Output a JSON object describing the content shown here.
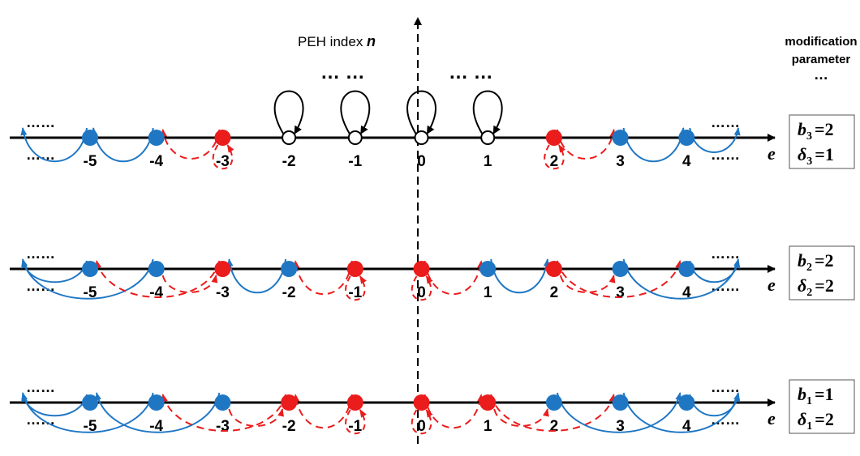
{
  "y_axis": {
    "label": "PEH index ",
    "variable": "n"
  },
  "x_axis_variable": "e",
  "modification_header": [
    "modification",
    "parameter"
  ],
  "ellipsis": "…",
  "top_ellipses": [
    "… …",
    "… …"
  ],
  "colors": {
    "blue": "#1f77c4",
    "red": "#ea1c1c",
    "white": "#ffffff",
    "black": "#000000"
  },
  "rows": [
    {
      "label_b": "b",
      "sub_b": "3",
      "value_b": "=2",
      "label_d": "δ",
      "sub_d": "3",
      "value_d": "=1",
      "ticks": [
        "-5",
        "-4",
        "-3",
        "-2",
        "-1",
        "0",
        "1",
        "2",
        "3",
        "4"
      ],
      "points": [
        {
          "x": -5,
          "type": "blue"
        },
        {
          "x": -4,
          "type": "blue"
        },
        {
          "x": -3,
          "type": "red"
        },
        {
          "x": -2,
          "type": "white"
        },
        {
          "x": -1,
          "type": "white"
        },
        {
          "x": 0,
          "type": "white"
        },
        {
          "x": 1,
          "type": "white"
        },
        {
          "x": 2,
          "type": "red"
        },
        {
          "x": 3,
          "type": "blue"
        },
        {
          "x": 4,
          "type": "blue"
        }
      ]
    },
    {
      "label_b": "b",
      "sub_b": "2",
      "value_b": "=2",
      "label_d": "δ",
      "sub_d": "2",
      "value_d": "=2",
      "ticks": [
        "-5",
        "-4",
        "-3",
        "-2",
        "-1",
        "0",
        "1",
        "2",
        "3",
        "4"
      ],
      "points": [
        {
          "x": -5,
          "type": "blue"
        },
        {
          "x": -4,
          "type": "blue"
        },
        {
          "x": -3,
          "type": "red"
        },
        {
          "x": -2,
          "type": "blue"
        },
        {
          "x": -1,
          "type": "red"
        },
        {
          "x": 0,
          "type": "red"
        },
        {
          "x": 1,
          "type": "blue"
        },
        {
          "x": 2,
          "type": "red"
        },
        {
          "x": 3,
          "type": "blue"
        },
        {
          "x": 4,
          "type": "blue"
        }
      ]
    },
    {
      "label_b": "b",
      "sub_b": "1",
      "value_b": "=1",
      "label_d": "δ",
      "sub_d": "1",
      "value_d": "=2",
      "ticks": [
        "-5",
        "-4",
        "-3",
        "-2",
        "-1",
        "0",
        "1",
        "2",
        "3",
        "4"
      ],
      "points": [
        {
          "x": -5,
          "type": "blue"
        },
        {
          "x": -4,
          "type": "blue"
        },
        {
          "x": -3,
          "type": "blue"
        },
        {
          "x": -2,
          "type": "red"
        },
        {
          "x": -1,
          "type": "red"
        },
        {
          "x": 0,
          "type": "red"
        },
        {
          "x": 1,
          "type": "red"
        },
        {
          "x": 2,
          "type": "blue"
        },
        {
          "x": 3,
          "type": "blue"
        },
        {
          "x": 4,
          "type": "blue"
        }
      ]
    }
  ]
}
